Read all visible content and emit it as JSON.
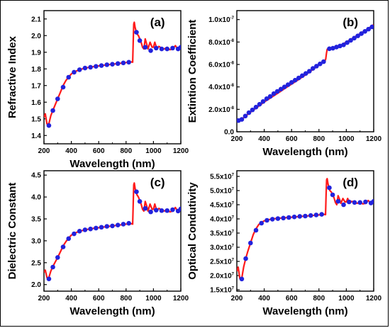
{
  "colors": {
    "line": "#ff1a1a",
    "marker": "#2222dd",
    "axis": "#000000"
  },
  "chart_data": [
    {
      "type": "line",
      "panel_label": "(a)",
      "xlabel": "Wavelength (nm)",
      "ylabel": "Refractive Index",
      "xlim": [
        200,
        1200
      ],
      "ylim": [
        1.35,
        2.15
      ],
      "xticks": [
        "200",
        "400",
        "600",
        "800",
        "1000",
        "1200"
      ],
      "yticks": [
        "1.4",
        "1.5",
        "1.6",
        "1.7",
        "1.8",
        "1.9",
        "2.0",
        "2.1"
      ],
      "line": {
        "x": [
          200,
          210,
          222,
          236,
          250,
          265,
          280,
          300,
          320,
          340,
          360,
          380,
          400,
          430,
          460,
          500,
          550,
          600,
          650,
          700,
          750,
          800,
          840,
          848,
          852,
          856,
          860,
          866,
          872,
          880,
          890,
          900,
          910,
          920,
          930,
          940,
          950,
          960,
          975,
          990,
          1000,
          1010,
          1025,
          1040,
          1060,
          1080,
          1100,
          1120,
          1140,
          1160,
          1180,
          1200
        ],
        "y": [
          1.51,
          1.53,
          1.47,
          1.47,
          1.52,
          1.55,
          1.58,
          1.62,
          1.66,
          1.7,
          1.73,
          1.75,
          1.77,
          1.785,
          1.795,
          1.805,
          1.812,
          1.818,
          1.823,
          1.828,
          1.833,
          1.838,
          1.842,
          1.84,
          1.95,
          2.07,
          2.08,
          2.05,
          2.03,
          2.01,
          2.0,
          1.98,
          1.96,
          1.93,
          1.92,
          1.98,
          1.95,
          1.92,
          1.96,
          1.93,
          1.93,
          1.96,
          1.92,
          1.935,
          1.925,
          1.92,
          1.93,
          1.915,
          1.92,
          1.94,
          1.915,
          1.935
        ]
      },
      "markers": {
        "x": [
          236,
          265,
          300,
          340,
          380,
          420,
          460,
          500,
          540,
          580,
          620,
          660,
          700,
          740,
          780,
          820,
          876,
          900,
          940,
          980,
          1020,
          1060,
          1100,
          1140,
          1180,
          1200
        ],
        "y": [
          1.46,
          1.55,
          1.62,
          1.69,
          1.75,
          1.78,
          1.795,
          1.805,
          1.81,
          1.815,
          1.82,
          1.825,
          1.828,
          1.832,
          1.836,
          1.84,
          2.02,
          1.97,
          1.93,
          1.91,
          1.925,
          1.92,
          1.92,
          1.925,
          1.92,
          1.93
        ]
      }
    },
    {
      "type": "line",
      "panel_label": "(b)",
      "xlabel": "Wavelength (nm)",
      "ylabel": "Extintion Coefficient",
      "xlim": [
        200,
        1200
      ],
      "ylim": [
        0,
        1.08e-07
      ],
      "xticks": [
        "200",
        "400",
        "600",
        "800",
        "1000",
        "1200"
      ],
      "yticks": [
        {
          "base": "0.0",
          "exp": ""
        },
        {
          "base": "2.0x10",
          "exp": "-8"
        },
        {
          "base": "4.0x10",
          "exp": "-8"
        },
        {
          "base": "6.0x10",
          "exp": "-8"
        },
        {
          "base": "8.0x10",
          "exp": "-8"
        },
        {
          "base": "1.0x10",
          "exp": "-7"
        }
      ],
      "ytick_values": [
        0,
        2e-08,
        4e-08,
        6e-08,
        8e-08,
        1e-07
      ],
      "line": {
        "x": [
          200,
          250,
          300,
          350,
          400,
          450,
          500,
          550,
          600,
          650,
          700,
          750,
          800,
          845,
          850,
          855,
          860,
          900,
          950,
          1000,
          1050,
          1100,
          1150,
          1200
        ],
        "y": [
          9.5e-09,
          1.25e-08,
          1.75e-08,
          2.2e-08,
          2.65e-08,
          3.05e-08,
          3.45e-08,
          3.85e-08,
          4.25e-08,
          4.65e-08,
          5.05e-08,
          5.5e-08,
          5.95e-08,
          6.35e-08,
          6.5e-08,
          7e-08,
          7.35e-08,
          7.45e-08,
          7.65e-08,
          8e-08,
          8.35e-08,
          8.75e-08,
          9.1e-08,
          9.55e-08
        ]
      },
      "markers": {
        "x": [
          212,
          236,
          262,
          288,
          314,
          340,
          366,
          392,
          418,
          444,
          470,
          496,
          522,
          548,
          574,
          600,
          626,
          652,
          678,
          704,
          730,
          756,
          782,
          808,
          834,
          876,
          902,
          928,
          954,
          980,
          1006,
          1032,
          1058,
          1084,
          1110,
          1136,
          1162,
          1188
        ],
        "y": [
          1e-08,
          1.1e-08,
          1.4e-08,
          1.7e-08,
          1.95e-08,
          2.2e-08,
          2.45e-08,
          2.7e-08,
          2.95e-08,
          3.15e-08,
          3.4e-08,
          3.6e-08,
          3.8e-08,
          4e-08,
          4.2e-08,
          4.4e-08,
          4.6e-08,
          4.8e-08,
          5e-08,
          5.2e-08,
          5.4e-08,
          5.65e-08,
          5.85e-08,
          6.05e-08,
          6.25e-08,
          7.4e-08,
          7.45e-08,
          7.55e-08,
          7.65e-08,
          7.75e-08,
          7.95e-08,
          8.15e-08,
          8.35e-08,
          8.55e-08,
          8.75e-08,
          8.95e-08,
          9.15e-08,
          9.35e-08
        ]
      }
    },
    {
      "type": "line",
      "panel_label": "(c)",
      "xlabel": "Wavelength (nm)",
      "ylabel": "Dielectric Constant",
      "xlim": [
        200,
        1200
      ],
      "ylim": [
        1.85,
        4.6
      ],
      "xticks": [
        "200",
        "400",
        "600",
        "800",
        "1000",
        "1200"
      ],
      "yticks": [
        "2.0",
        "2.5",
        "3.0",
        "3.5",
        "4.0",
        "4.5"
      ],
      "line": {
        "x": [
          200,
          210,
          222,
          236,
          250,
          265,
          280,
          300,
          320,
          340,
          360,
          380,
          400,
          430,
          460,
          500,
          550,
          600,
          650,
          700,
          750,
          800,
          840,
          848,
          852,
          856,
          860,
          866,
          872,
          880,
          890,
          900,
          910,
          920,
          930,
          940,
          950,
          960,
          975,
          990,
          1000,
          1010,
          1025,
          1040,
          1060,
          1080,
          1100,
          1120,
          1140,
          1160,
          1180,
          1200
        ],
        "y": [
          2.28,
          2.33,
          2.16,
          2.16,
          2.31,
          2.41,
          2.5,
          2.62,
          2.75,
          2.88,
          2.98,
          3.06,
          3.13,
          3.18,
          3.22,
          3.25,
          3.28,
          3.3,
          3.32,
          3.34,
          3.36,
          3.38,
          3.39,
          3.38,
          3.8,
          4.28,
          4.32,
          4.2,
          4.12,
          4.05,
          4.0,
          3.92,
          3.84,
          3.72,
          3.68,
          3.9,
          3.8,
          3.68,
          3.84,
          3.72,
          3.72,
          3.84,
          3.68,
          3.74,
          3.7,
          3.68,
          3.72,
          3.66,
          3.68,
          3.76,
          3.66,
          3.74
        ]
      },
      "markers": {
        "x": [
          236,
          265,
          300,
          340,
          380,
          420,
          460,
          500,
          540,
          580,
          620,
          660,
          700,
          740,
          780,
          820,
          876,
          900,
          940,
          980,
          1020,
          1060,
          1100,
          1140,
          1180,
          1200
        ],
        "y": [
          2.13,
          2.4,
          2.62,
          2.86,
          3.05,
          3.16,
          3.22,
          3.25,
          3.27,
          3.29,
          3.31,
          3.33,
          3.34,
          3.36,
          3.38,
          3.4,
          4.12,
          3.9,
          3.74,
          3.66,
          3.7,
          3.69,
          3.69,
          3.71,
          3.68,
          3.73
        ]
      }
    },
    {
      "type": "line",
      "panel_label": "(d)",
      "xlabel": "Wavelength (nm)",
      "ylabel": "Optical Condutivity",
      "xlim": [
        200,
        1200
      ],
      "ylim": [
        14500000.0,
        57000000.0
      ],
      "xticks": [
        "200",
        "400",
        "600",
        "800",
        "1000",
        "1200"
      ],
      "yticks": [
        {
          "base": "1.5x10",
          "exp": "7"
        },
        {
          "base": "2.0x10",
          "exp": "7"
        },
        {
          "base": "2.5x10",
          "exp": "7"
        },
        {
          "base": "3.0x10",
          "exp": "7"
        },
        {
          "base": "3.5x10",
          "exp": "7"
        },
        {
          "base": "4.0x10",
          "exp": "7"
        },
        {
          "base": "4.5x10",
          "exp": "7"
        },
        {
          "base": "5.0x10",
          "exp": "7"
        },
        {
          "base": "5.5x10",
          "exp": "7"
        }
      ],
      "ytick_values": [
        15000000.0,
        20000000.0,
        25000000.0,
        30000000.0,
        35000000.0,
        40000000.0,
        45000000.0,
        50000000.0,
        55000000.0
      ],
      "line": {
        "x": [
          200,
          210,
          222,
          236,
          250,
          265,
          280,
          300,
          320,
          340,
          360,
          380,
          400,
          430,
          460,
          500,
          550,
          600,
          650,
          700,
          750,
          800,
          840,
          848,
          852,
          856,
          860,
          866,
          872,
          880,
          890,
          900,
          910,
          920,
          930,
          940,
          950,
          960,
          975,
          990,
          1000,
          1010,
          1025,
          1040,
          1060,
          1080,
          1100,
          1120,
          1140,
          1160,
          1180,
          1200
        ],
        "y": [
          21500000.0,
          23000000.0,
          19000000.0,
          19000000.0,
          23000000.0,
          26000000.0,
          28500000.0,
          31500000.0,
          34500000.0,
          36500000.0,
          38000000.0,
          38800000.0,
          39300000.0,
          39700000.0,
          40000000.0,
          40200000.0,
          40400000.0,
          40600000.0,
          40800000.0,
          41000000.0,
          41200000.0,
          41400000.0,
          41600000.0,
          41500000.0,
          48000000.0,
          53800000.0,
          54200000.0,
          52500000.0,
          51200000.0,
          50000000.0,
          49500000.0,
          48500000.0,
          47500000.0,
          45800000.0,
          45000000.0,
          48200000.0,
          47000000.0,
          45500000.0,
          47200000.0,
          46000000.0,
          46000000.0,
          47200000.0,
          45500000.0,
          46200000.0,
          45800000.0,
          45500000.0,
          46000000.0,
          45300000.0,
          45500000.0,
          46500000.0,
          45300000.0,
          46200000.0
        ]
      },
      "markers": {
        "x": [
          236,
          265,
          300,
          340,
          380,
          420,
          460,
          500,
          540,
          580,
          620,
          660,
          700,
          740,
          780,
          820,
          876,
          900,
          940,
          980,
          1020,
          1060,
          1100,
          1140,
          1180,
          1200
        ],
        "y": [
          18800000.0,
          26000000.0,
          31500000.0,
          36000000.0,
          38500000.0,
          39500000.0,
          39900000.0,
          40100000.0,
          40300000.0,
          40500000.0,
          40700000.0,
          40900000.0,
          41000000.0,
          41200000.0,
          41400000.0,
          41600000.0,
          51000000.0,
          48500000.0,
          46200000.0,
          45000000.0,
          46000000.0,
          45800000.0,
          45800000.0,
          46000000.0,
          45600000.0,
          46200000.0
        ]
      }
    }
  ]
}
